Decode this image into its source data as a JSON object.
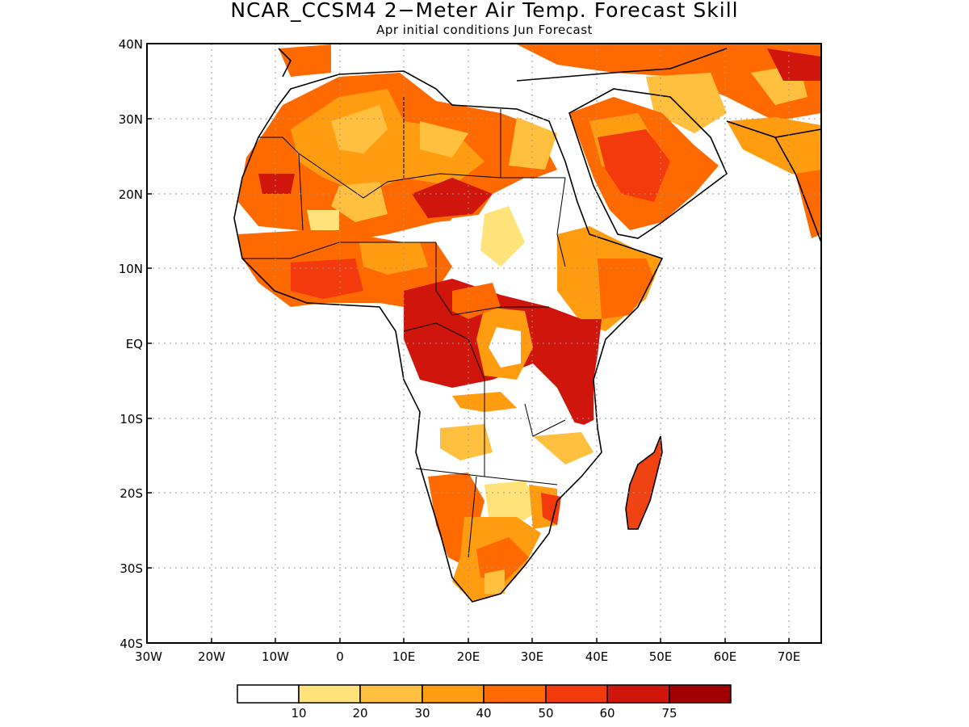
{
  "title": "NCAR_CCSM4 2−Meter Air Temp. Forecast Skill",
  "subtitle": "Apr initial conditions  Jun Forecast",
  "map": {
    "region": "Africa and Arabian Peninsula",
    "lon_range": [
      -30,
      75
    ],
    "lat_range": [
      -40,
      40
    ],
    "lat_ticks": [
      "40N",
      "30N",
      "20N",
      "10N",
      "EQ",
      "10S",
      "20S",
      "30S",
      "40S"
    ],
    "lon_ticks": [
      "30W",
      "20W",
      "10W",
      "0",
      "10E",
      "20E",
      "30E",
      "40E",
      "50E",
      "60E",
      "70E"
    ],
    "gridlines": "dotted"
  },
  "colorbar": {
    "labels": [
      "10",
      "20",
      "30",
      "40",
      "50",
      "60",
      "75"
    ],
    "colors": [
      "#ffffff",
      "#ffe37a",
      "#ffbf3f",
      "#ff9c10",
      "#ff6a00",
      "#f23a0c",
      "#d0160c",
      "#a00000"
    ]
  }
}
